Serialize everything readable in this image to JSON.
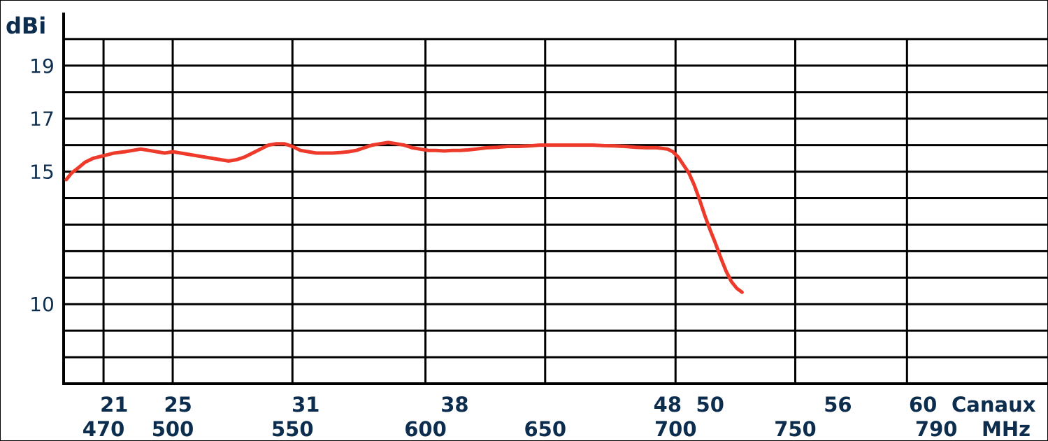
{
  "chart_data": {
    "type": "line",
    "ylabel": "dBi",
    "ylim": [
      7.0,
      21.0
    ],
    "xlim": [
      455,
      825
    ],
    "y_ticks": [
      {
        "value": 19,
        "label": "19"
      },
      {
        "value": 17,
        "label": "17"
      },
      {
        "value": 15,
        "label": "15"
      },
      {
        "value": 10,
        "label": "10"
      }
    ],
    "y_gridlines": [
      20,
      19,
      18,
      17,
      16,
      15,
      14,
      13,
      12,
      11,
      10,
      9,
      8
    ],
    "x_gridlines_mhz": [
      470,
      496,
      541,
      591,
      636,
      685,
      730,
      772
    ],
    "channel_axis_label": "Canaux",
    "mhz_axis_label": "MHz",
    "channel_ticks": [
      {
        "mhz": 474,
        "label": "21"
      },
      {
        "mhz": 498,
        "label": "25"
      },
      {
        "mhz": 546,
        "label": "31"
      },
      {
        "mhz": 602,
        "label": "38"
      },
      {
        "mhz": 682,
        "label": "48"
      },
      {
        "mhz": 698,
        "label": "50"
      },
      {
        "mhz": 746,
        "label": "56"
      },
      {
        "mhz": 778,
        "label": "60"
      }
    ],
    "mhz_ticks": [
      {
        "mhz": 470,
        "label": "470"
      },
      {
        "mhz": 496,
        "label": "500"
      },
      {
        "mhz": 541,
        "label": "550"
      },
      {
        "mhz": 591,
        "label": "600"
      },
      {
        "mhz": 636,
        "label": "650"
      },
      {
        "mhz": 685,
        "label": "700"
      },
      {
        "mhz": 730,
        "label": "750"
      },
      {
        "mhz": 783,
        "label": "790"
      }
    ],
    "grid": true,
    "series": [
      {
        "color": "#ee3a2a",
        "x": [
          456,
          458,
          460,
          463,
          466,
          470,
          474,
          478,
          481,
          484,
          487,
          490,
          493,
          496,
          499,
          502,
          505,
          508,
          511,
          514,
          517,
          520,
          523,
          526,
          529,
          532,
          535,
          538,
          541,
          544,
          547,
          550,
          553,
          556,
          559,
          562,
          565,
          568,
          571,
          574,
          577,
          580,
          583,
          586,
          589,
          592,
          595,
          598,
          601,
          604,
          607,
          610,
          614,
          618,
          622,
          626,
          630,
          634,
          638,
          642,
          646,
          650,
          654,
          658,
          662,
          666,
          670,
          674,
          678,
          682,
          684,
          686,
          688,
          690,
          692,
          694,
          696,
          698,
          700,
          702,
          704,
          706,
          708,
          710
        ],
        "values": [
          14.7,
          14.95,
          15.1,
          15.35,
          15.5,
          15.6,
          15.7,
          15.75,
          15.8,
          15.85,
          15.8,
          15.75,
          15.7,
          15.75,
          15.7,
          15.65,
          15.6,
          15.55,
          15.5,
          15.45,
          15.4,
          15.45,
          15.55,
          15.7,
          15.85,
          16.0,
          16.05,
          16.05,
          15.95,
          15.8,
          15.75,
          15.7,
          15.7,
          15.7,
          15.72,
          15.75,
          15.8,
          15.9,
          16.0,
          16.05,
          16.1,
          16.05,
          16.0,
          15.9,
          15.85,
          15.8,
          15.8,
          15.78,
          15.8,
          15.8,
          15.82,
          15.85,
          15.9,
          15.92,
          15.95,
          15.95,
          15.97,
          16.0,
          16.0,
          16.0,
          16.0,
          16.0,
          16.0,
          15.98,
          15.97,
          15.95,
          15.92,
          15.9,
          15.9,
          15.85,
          15.75,
          15.55,
          15.25,
          14.95,
          14.5,
          13.95,
          13.35,
          12.8,
          12.3,
          11.75,
          11.25,
          10.85,
          10.6,
          10.45
        ]
      }
    ]
  }
}
